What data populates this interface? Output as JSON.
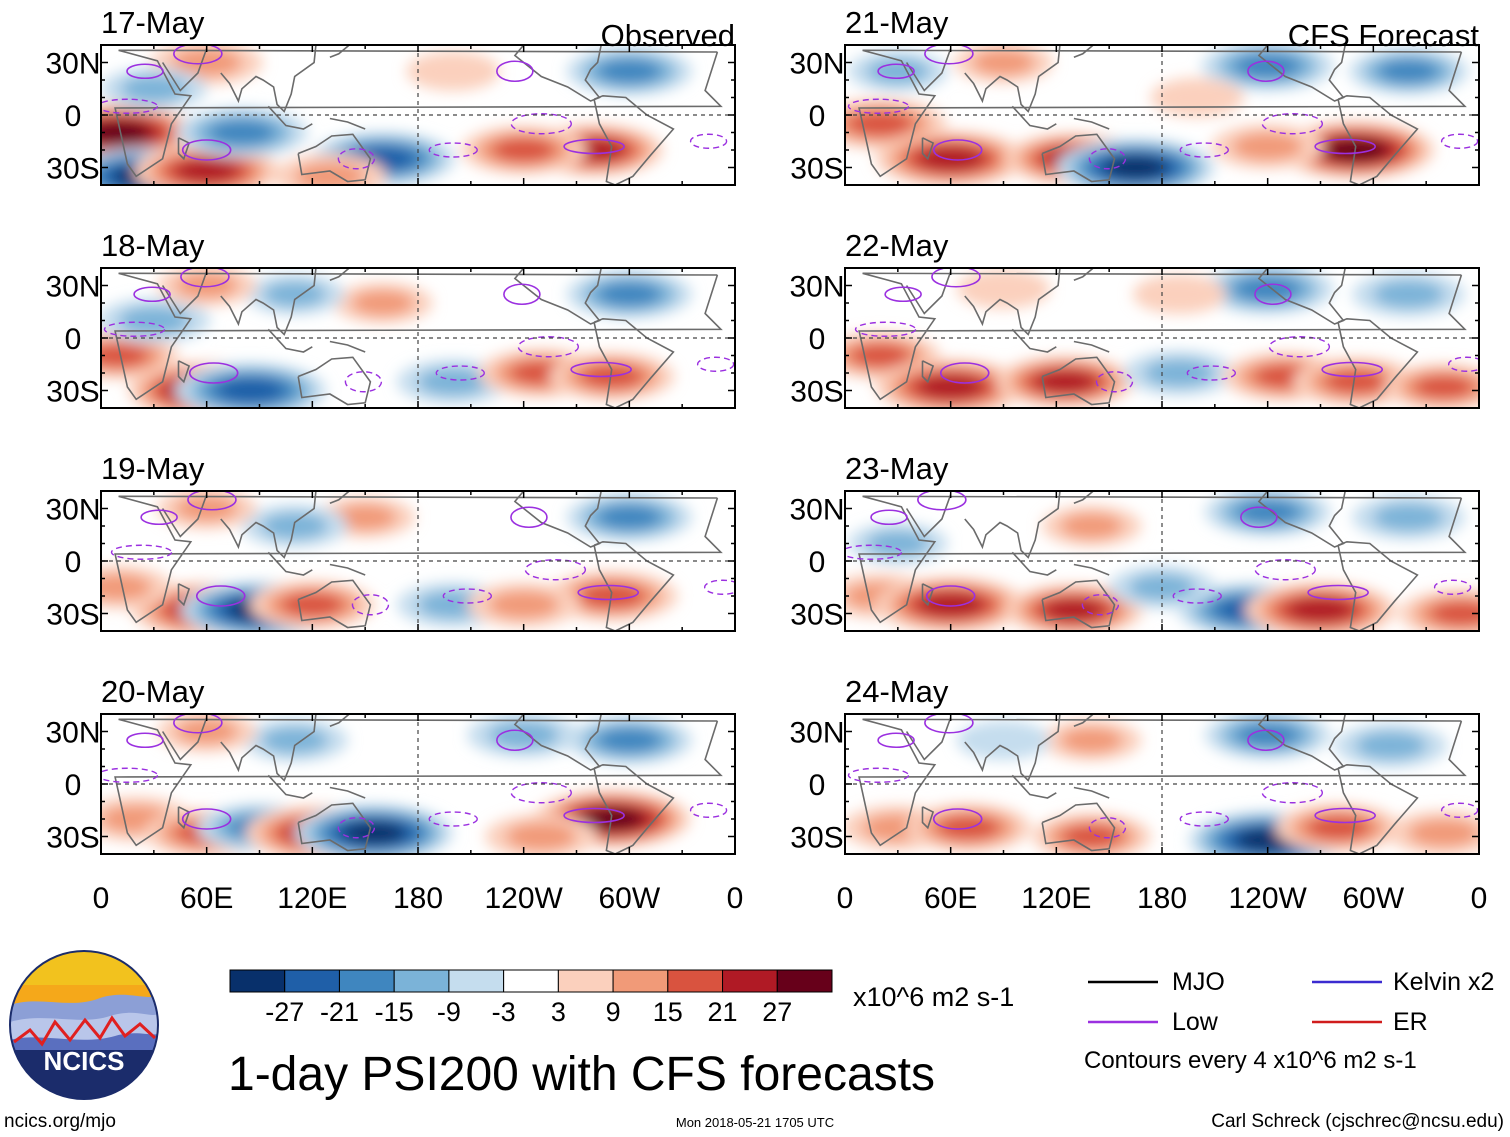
{
  "colors": {
    "mjo": "#000000",
    "low": "#9b30e0",
    "kelvin": "#3b2bd0",
    "er": "#d01c1c",
    "logo_text": "#ffffff"
  },
  "chart_data": {
    "type": "heatmap",
    "title": "1-day PSI200 with CFS forecasts",
    "variable": "PSI200 anomaly",
    "columns": [
      {
        "label": "Observed",
        "dates": [
          "17-May",
          "18-May",
          "19-May",
          "20-May"
        ]
      },
      {
        "label": "CFS Forecast",
        "dates": [
          "21-May",
          "22-May",
          "23-May",
          "24-May"
        ]
      }
    ],
    "x_ticks": [
      "0",
      "60E",
      "120E",
      "180",
      "120W",
      "60W",
      "0"
    ],
    "x_tick_values": [
      0,
      60,
      120,
      180,
      240,
      300,
      360
    ],
    "xlim": [
      0,
      360
    ],
    "y_ticks": [
      "30N",
      "0",
      "30S"
    ],
    "y_tick_values": [
      30,
      0,
      -30
    ],
    "ylim": [
      -40,
      40
    ],
    "colorbar": {
      "levels": [
        "-27",
        "-21",
        "-15",
        "-9",
        "-3",
        "3",
        "9",
        "15",
        "21",
        "27"
      ],
      "level_values": [
        -27,
        -21,
        -15,
        -9,
        -3,
        3,
        9,
        15,
        21,
        27
      ],
      "colors": [
        "#08306b",
        "#1f5fa8",
        "#3f86bf",
        "#7bb3d8",
        "#c5ddee",
        "#ffffff",
        "#fbd0bd",
        "#f19a78",
        "#d9533f",
        "#b01a25",
        "#67001a"
      ],
      "units": "x10^6 m2 s-1"
    },
    "anomalies": [
      [
        {
          "lon": 10,
          "lat": -10,
          "v": 28
        },
        {
          "lon": 25,
          "lat": -35,
          "v": -28
        },
        {
          "lon": 60,
          "lat": -32,
          "v": 24
        },
        {
          "lon": 80,
          "lat": -10,
          "v": -20
        },
        {
          "lon": 160,
          "lat": -25,
          "v": -24
        },
        {
          "lon": 280,
          "lat": -20,
          "v": 22
        },
        {
          "lon": 240,
          "lat": -20,
          "v": 18
        },
        {
          "lon": 300,
          "lat": 25,
          "v": -18
        },
        {
          "lon": 60,
          "lat": 30,
          "v": 14
        },
        {
          "lon": 30,
          "lat": 15,
          "v": -12
        },
        {
          "lon": 130,
          "lat": -35,
          "v": 14
        },
        {
          "lon": 200,
          "lat": 25,
          "v": 8
        }
      ],
      [
        {
          "lon": 10,
          "lat": -10,
          "v": 16
        },
        {
          "lon": 60,
          "lat": -30,
          "v": 28
        },
        {
          "lon": 85,
          "lat": -30,
          "v": -26
        },
        {
          "lon": 200,
          "lat": -25,
          "v": -14
        },
        {
          "lon": 250,
          "lat": -20,
          "v": 18
        },
        {
          "lon": 290,
          "lat": -22,
          "v": 18
        },
        {
          "lon": 300,
          "lat": 25,
          "v": -18
        },
        {
          "lon": 160,
          "lat": 20,
          "v": 10
        },
        {
          "lon": 30,
          "lat": 10,
          "v": -14
        },
        {
          "lon": 110,
          "lat": 25,
          "v": -10
        },
        {
          "lon": 60,
          "lat": 30,
          "v": 10
        }
      ],
      [
        {
          "lon": 60,
          "lat": -28,
          "v": 26
        },
        {
          "lon": 90,
          "lat": -28,
          "v": -28
        },
        {
          "lon": 120,
          "lat": -25,
          "v": 18
        },
        {
          "lon": 200,
          "lat": -25,
          "v": -14
        },
        {
          "lon": 290,
          "lat": -20,
          "v": 20
        },
        {
          "lon": 240,
          "lat": -25,
          "v": 14
        },
        {
          "lon": 300,
          "lat": 25,
          "v": -18
        },
        {
          "lon": 150,
          "lat": 25,
          "v": 10
        },
        {
          "lon": 10,
          "lat": -15,
          "v": 12
        },
        {
          "lon": 110,
          "lat": 20,
          "v": -12
        },
        {
          "lon": 60,
          "lat": 30,
          "v": 10
        }
      ],
      [
        {
          "lon": 20,
          "lat": -20,
          "v": 14
        },
        {
          "lon": 60,
          "lat": -28,
          "v": 18
        },
        {
          "lon": 90,
          "lat": -25,
          "v": -18
        },
        {
          "lon": 125,
          "lat": -28,
          "v": 26
        },
        {
          "lon": 155,
          "lat": -28,
          "v": -28
        },
        {
          "lon": 290,
          "lat": -20,
          "v": 28
        },
        {
          "lon": 250,
          "lat": -30,
          "v": 14
        },
        {
          "lon": 300,
          "lat": 25,
          "v": -18
        },
        {
          "lon": 240,
          "lat": 28,
          "v": -14
        },
        {
          "lon": 110,
          "lat": 25,
          "v": -12
        },
        {
          "lon": 60,
          "lat": 30,
          "v": 10
        }
      ],
      [
        {
          "lon": 20,
          "lat": -5,
          "v": 20
        },
        {
          "lon": 60,
          "lat": -25,
          "v": 26
        },
        {
          "lon": 130,
          "lat": -25,
          "v": 22
        },
        {
          "lon": 165,
          "lat": -30,
          "v": -28
        },
        {
          "lon": 290,
          "lat": -20,
          "v": 28
        },
        {
          "lon": 240,
          "lat": -18,
          "v": 14
        },
        {
          "lon": 240,
          "lat": 28,
          "v": -20
        },
        {
          "lon": 320,
          "lat": 25,
          "v": -16
        },
        {
          "lon": 30,
          "lat": 25,
          "v": -10
        },
        {
          "lon": 200,
          "lat": 10,
          "v": 8
        },
        {
          "lon": 90,
          "lat": 30,
          "v": 10
        }
      ],
      [
        {
          "lon": 20,
          "lat": -10,
          "v": 16
        },
        {
          "lon": 60,
          "lat": -28,
          "v": 26
        },
        {
          "lon": 125,
          "lat": -25,
          "v": 22
        },
        {
          "lon": 190,
          "lat": -20,
          "v": -14
        },
        {
          "lon": 250,
          "lat": -22,
          "v": 18
        },
        {
          "lon": 290,
          "lat": -25,
          "v": 18
        },
        {
          "lon": 340,
          "lat": -28,
          "v": 16
        },
        {
          "lon": 240,
          "lat": 28,
          "v": -20
        },
        {
          "lon": 320,
          "lat": 25,
          "v": -14
        },
        {
          "lon": 190,
          "lat": 25,
          "v": 8
        },
        {
          "lon": 90,
          "lat": 28,
          "v": 8
        }
      ],
      [
        {
          "lon": 20,
          "lat": -20,
          "v": 14
        },
        {
          "lon": 60,
          "lat": -25,
          "v": 26
        },
        {
          "lon": 130,
          "lat": -28,
          "v": 22
        },
        {
          "lon": 230,
          "lat": -28,
          "v": -24
        },
        {
          "lon": 270,
          "lat": -28,
          "v": 26
        },
        {
          "lon": 350,
          "lat": -30,
          "v": 18
        },
        {
          "lon": 180,
          "lat": -15,
          "v": -12
        },
        {
          "lon": 240,
          "lat": 28,
          "v": -18
        },
        {
          "lon": 320,
          "lat": 25,
          "v": -14
        },
        {
          "lon": 140,
          "lat": 20,
          "v": 10
        },
        {
          "lon": 30,
          "lat": 10,
          "v": -10
        }
      ],
      [
        {
          "lon": 30,
          "lat": -25,
          "v": 14
        },
        {
          "lon": 70,
          "lat": -25,
          "v": 18
        },
        {
          "lon": 140,
          "lat": -30,
          "v": 16
        },
        {
          "lon": 240,
          "lat": -32,
          "v": -28
        },
        {
          "lon": 280,
          "lat": -25,
          "v": 18
        },
        {
          "lon": 340,
          "lat": -28,
          "v": 14
        },
        {
          "lon": 240,
          "lat": 28,
          "v": -18
        },
        {
          "lon": 310,
          "lat": 22,
          "v": -14
        },
        {
          "lon": 140,
          "lat": 25,
          "v": 10
        },
        {
          "lon": 90,
          "lat": 25,
          "v": -8
        }
      ]
    ],
    "legend": {
      "position": "bottom-right",
      "entries": [
        "MJO",
        "Low",
        "Kelvin x2",
        "ER"
      ],
      "contour_note": "Contours every 4 x10^6 m2 s-1"
    }
  },
  "footer": {
    "logo_label": "NCICS",
    "site": "ncics.org/mjo",
    "timestamp": "Mon 2018-05-21 1705 UTC",
    "author": "Carl Schreck (cjschrec@ncsu.edu)"
  }
}
